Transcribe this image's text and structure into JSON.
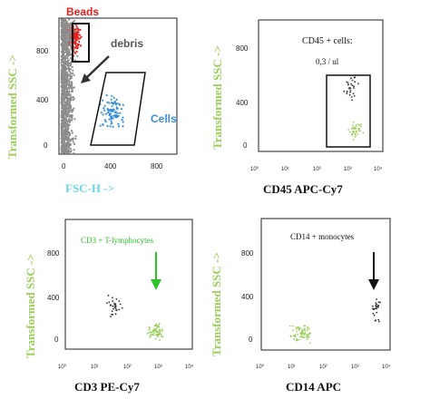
{
  "colors": {
    "debris": "#8c8c8c",
    "beads": "#e8201c",
    "cells": "#3b8fd8",
    "green": "#9ACD5A",
    "dark": "#333333",
    "cyan_label": "#6FD3E3",
    "arrow_green": "#2cc22c"
  },
  "chart_data": [
    {
      "type": "scatter",
      "panel": "top-left",
      "xlabel": "FSC-H ->",
      "ylabel": "Transformed SSC ->",
      "xlim": [
        0,
        1000
      ],
      "ylim": [
        0,
        1000
      ],
      "xticks": [
        "0",
        "400",
        "800"
      ],
      "yticks": [
        "0",
        "400",
        "800"
      ],
      "annotations": {
        "beads": "Beads",
        "debris": "debris",
        "cells": "Cells"
      },
      "series": [
        {
          "name": "Beads",
          "color": "#e8201c",
          "cluster": {
            "x_range": [
              60,
              200
            ],
            "y_range": [
              700,
              1000
            ],
            "count": 140
          }
        },
        {
          "name": "debris",
          "color": "#8c8c8c",
          "cluster": {
            "x_range": [
              0,
              300
            ],
            "y_range": [
              0,
              1000
            ],
            "count": 1200
          }
        },
        {
          "name": "Cells",
          "color": "#3b8fd8",
          "cluster": {
            "x_range": [
              300,
              600
            ],
            "y_range": [
              100,
              500
            ],
            "count": 90
          }
        }
      ]
    },
    {
      "type": "scatter",
      "panel": "top-right",
      "xlabel": "CD45 APC-Cy7",
      "ylabel": "Transformed SSC ->",
      "xscale": "log",
      "xlim": [
        1,
        10000
      ],
      "ylim": [
        0,
        1000
      ],
      "xticks": [
        "10⁰",
        "10¹",
        "10²",
        "10³",
        "10⁴"
      ],
      "yticks": [
        "0",
        "400",
        "800"
      ],
      "annotations": {
        "title": "CD45 + cells:",
        "value": "0,3 / ul"
      },
      "series": [
        {
          "color": "#9ACD5A",
          "cluster": {
            "x_range": [
              600,
              3000
            ],
            "y_range": [
              60,
              280
            ],
            "count": 40
          }
        },
        {
          "color": "#333333",
          "cluster": {
            "x_range": [
              400,
              2500
            ],
            "y_range": [
              280,
              700
            ],
            "count": 30
          }
        }
      ]
    },
    {
      "type": "scatter",
      "panel": "bottom-left",
      "xlabel": "CD3 PE-Cy7",
      "ylabel": "Transformed SSC ->",
      "xscale": "log",
      "xlim": [
        1,
        10000
      ],
      "ylim": [
        0,
        1000
      ],
      "xticks": [
        "10⁰",
        "10¹",
        "10²",
        "10³",
        "10⁴"
      ],
      "yticks": [
        "0",
        "400",
        "800"
      ],
      "annotations": {
        "title": "CD3 + T-lymphocytes"
      },
      "series": [
        {
          "color": "#9ACD5A",
          "cluster": {
            "x_range": [
              250,
              2000
            ],
            "y_range": [
              40,
              220
            ],
            "count": 60
          }
        },
        {
          "color": "#333333",
          "cluster": {
            "x_range": [
              12,
              100
            ],
            "y_range": [
              180,
              480
            ],
            "count": 30
          }
        }
      ]
    },
    {
      "type": "scatter",
      "panel": "bottom-right",
      "xlabel": "CD14 APC",
      "ylabel": "Transformed SSC ->",
      "xscale": "log",
      "xlim": [
        1,
        10000
      ],
      "ylim": [
        0,
        1000
      ],
      "xticks": [
        "10⁰",
        "10¹",
        "10²",
        "10³",
        "10⁴"
      ],
      "yticks": [
        "0",
        "400",
        "800"
      ],
      "annotations": {
        "title": "CD14 + monocytes"
      },
      "series": [
        {
          "color": "#9ACD5A",
          "cluster": {
            "x_range": [
              5,
              60
            ],
            "y_range": [
              30,
              230
            ],
            "count": 70
          }
        },
        {
          "color": "#333333",
          "cluster": {
            "x_range": [
              2000,
              6000
            ],
            "y_range": [
              150,
              480
            ],
            "count": 25
          }
        }
      ]
    }
  ]
}
